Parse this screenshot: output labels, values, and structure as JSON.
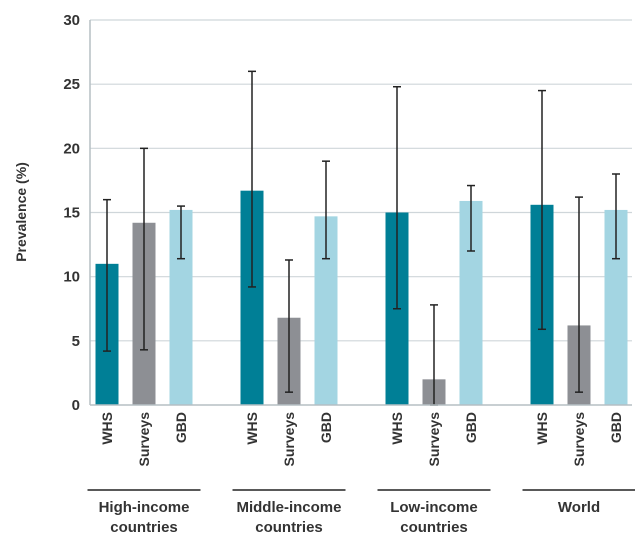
{
  "chart_data": {
    "type": "bar",
    "ylabel": "Prevalence (%)",
    "ylim": [
      0,
      30
    ],
    "yticks": [
      "0",
      "5",
      "10",
      "15",
      "20",
      "25",
      "30"
    ],
    "grid": "horizontal",
    "colors": {
      "WHS": "#007f96",
      "Surveys": "#8d8f94",
      "GBD": "#a3d5e2"
    },
    "groups": [
      {
        "label_lines": [
          "High-income",
          "countries"
        ],
        "bars": [
          {
            "category": "WHS",
            "value": 11.0,
            "error_low": 4.2,
            "error_high": 16.0
          },
          {
            "category": "Surveys",
            "value": 14.2,
            "error_low": 4.3,
            "error_high": 20.0
          },
          {
            "category": "GBD",
            "value": 15.2,
            "error_low": 11.4,
            "error_high": 15.5
          }
        ]
      },
      {
        "label_lines": [
          "Middle-income",
          "countries"
        ],
        "bars": [
          {
            "category": "WHS",
            "value": 16.7,
            "error_low": 9.2,
            "error_high": 26.0
          },
          {
            "category": "Surveys",
            "value": 6.8,
            "error_low": 1.0,
            "error_high": 11.3
          },
          {
            "category": "GBD",
            "value": 14.7,
            "error_low": 11.4,
            "error_high": 19.0
          }
        ]
      },
      {
        "label_lines": [
          "Low-income",
          "countries"
        ],
        "bars": [
          {
            "category": "WHS",
            "value": 15.0,
            "error_low": 7.5,
            "error_high": 24.8
          },
          {
            "category": "Surveys",
            "value": 2.0,
            "error_low": 0.0,
            "error_high": 7.8
          },
          {
            "category": "GBD",
            "value": 15.9,
            "error_low": 12.0,
            "error_high": 17.1
          }
        ]
      },
      {
        "label_lines": [
          "World"
        ],
        "bars": [
          {
            "category": "WHS",
            "value": 15.6,
            "error_low": 5.9,
            "error_high": 24.5
          },
          {
            "category": "Surveys",
            "value": 6.2,
            "error_low": 1.0,
            "error_high": 16.2
          },
          {
            "category": "GBD",
            "value": 15.2,
            "error_low": 11.4,
            "error_high": 18.0
          }
        ]
      }
    ]
  }
}
